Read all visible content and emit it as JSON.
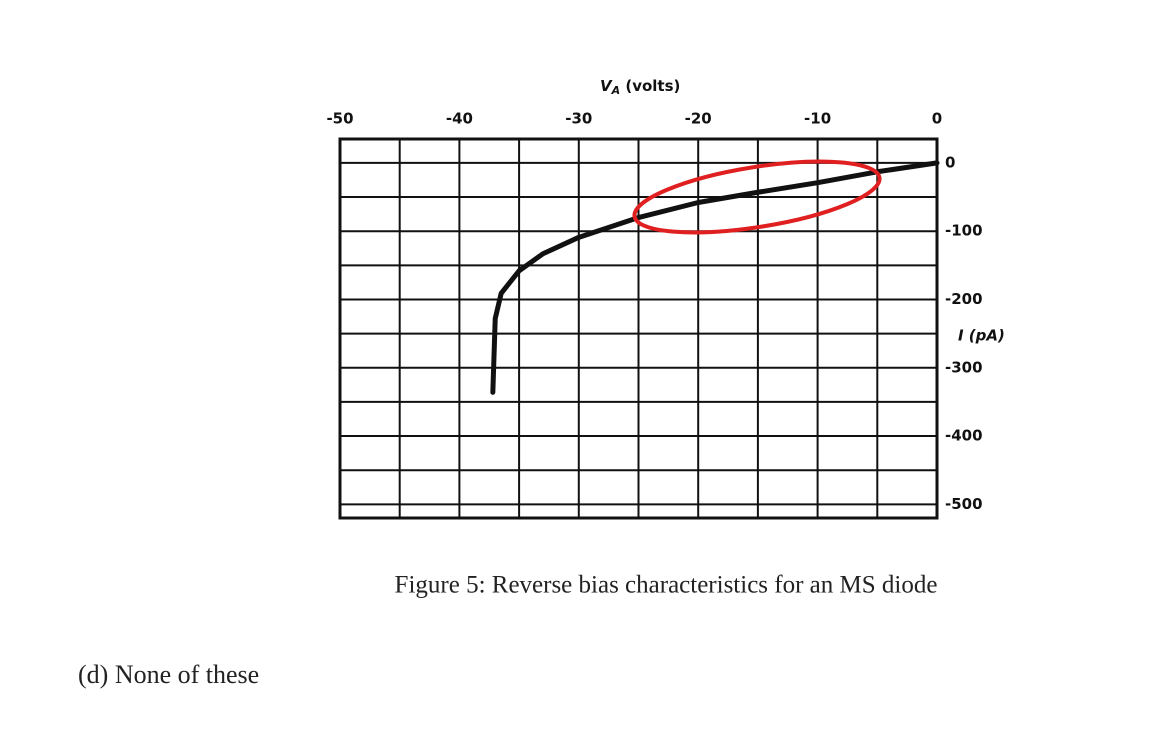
{
  "chart_data": {
    "type": "line",
    "xlabel_main": "V",
    "xlabel_sub": "A",
    "xlabel_rest": " (volts)",
    "ylabel": "I (pA)",
    "x": [
      -37.2,
      -37,
      -36.5,
      -35,
      -33,
      -30,
      -25,
      -20,
      -15,
      -10,
      -5,
      0
    ],
    "values": [
      -336,
      -228,
      -191,
      -158,
      -133,
      -109,
      -80,
      -58,
      -43,
      -29,
      -13,
      0
    ],
    "color": "#111111",
    "xlim": [
      -50,
      0
    ],
    "xticks": [
      -50,
      -40,
      -30,
      -20,
      -10,
      0
    ],
    "ylim": [
      -520,
      35
    ],
    "yticks": [
      0,
      -100,
      -200,
      -300,
      -400,
      -500
    ],
    "grid": true,
    "caption": "Figure 5: Reverse bias characteristics for an MS diode",
    "option": "(d) None of these"
  }
}
